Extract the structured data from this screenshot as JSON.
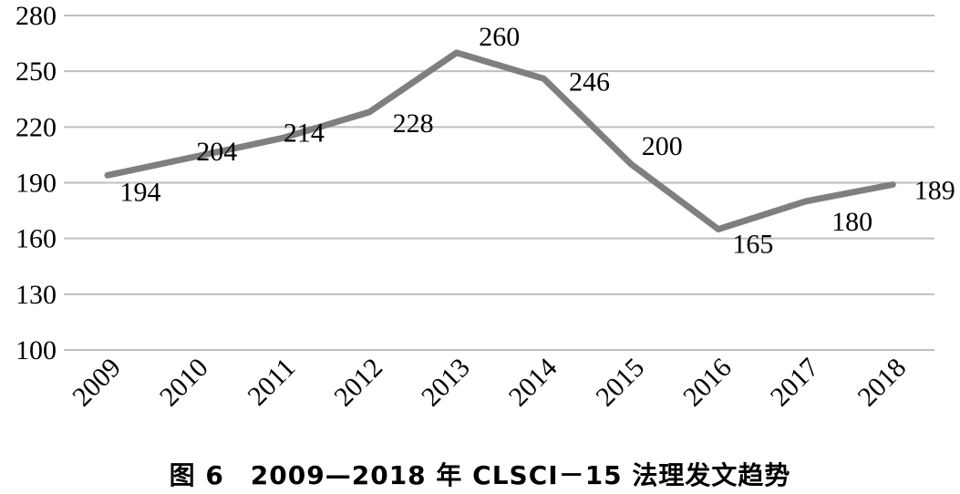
{
  "chart_data": {
    "type": "line",
    "x": [
      "2009",
      "2010",
      "2011",
      "2012",
      "2013",
      "2014",
      "2015",
      "2016",
      "2017",
      "2018"
    ],
    "series": [
      {
        "values": [
          194,
          204,
          214,
          228,
          260,
          246,
          200,
          165,
          180,
          189
        ]
      }
    ],
    "data_labels": [
      "194",
      "204",
      "214",
      "228",
      "260",
      "246",
      "200",
      "165",
      "180",
      "189"
    ],
    "ylim": [
      100,
      280
    ],
    "y_ticks": [
      100,
      130,
      160,
      190,
      220,
      250,
      280
    ],
    "y_tick_labels": [
      "100",
      "130",
      "160",
      "190",
      "220",
      "250",
      "280"
    ],
    "grid": "horizontal",
    "line_color": "#7f7f7f",
    "grid_color": "#bfbfbf",
    "title": "",
    "xlabel": "",
    "ylabel": ""
  },
  "caption": "图 6　2009—2018 年 CLSCI－15 法理发文趋势"
}
